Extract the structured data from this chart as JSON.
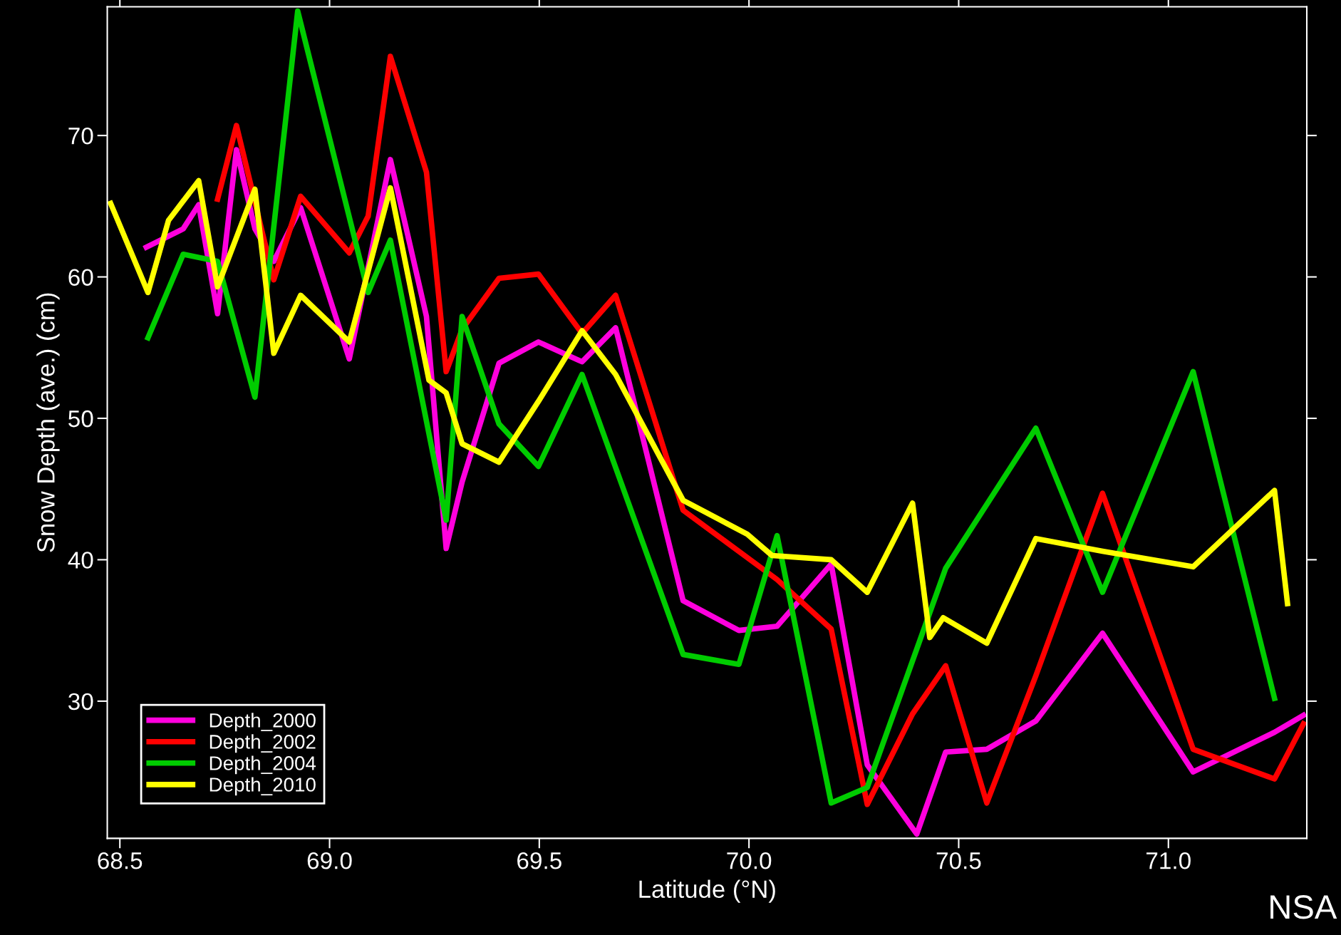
{
  "chart_data": {
    "type": "line",
    "xlabel": "Latitude (°N)",
    "ylabel": "Snow Depth (ave.) (cm)",
    "xlim": [
      68.47,
      71.33
    ],
    "ylim": [
      20.3,
      79.1
    ],
    "xticks": [
      {
        "value": 68.5,
        "label": "68.5"
      },
      {
        "value": 69.0,
        "label": "69.0"
      },
      {
        "value": 69.5,
        "label": "69.5"
      },
      {
        "value": 70.0,
        "label": "70.0"
      },
      {
        "value": 70.5,
        "label": "70.5"
      },
      {
        "value": 71.0,
        "label": "71.0"
      }
    ],
    "yticks": [
      30,
      40,
      50,
      60,
      70
    ],
    "grid": false,
    "legend": "bottom left",
    "marker": "none",
    "line_style": "solid",
    "annotations": [
      "NSA"
    ],
    "series": [
      {
        "name": "Depth_2000",
        "color": "#ff00dd",
        "x": [
          68.563,
          68.651,
          68.688,
          68.733,
          68.778,
          68.822,
          68.867,
          68.931,
          69.047,
          69.145,
          69.231,
          69.278,
          69.316,
          69.404,
          69.498,
          69.602,
          69.682,
          69.843,
          69.976,
          70.067,
          70.196,
          70.282,
          70.4,
          70.469,
          70.567,
          70.684,
          70.843,
          71.059,
          71.253,
          71.322
        ],
        "values": [
          62.1,
          63.4,
          65.1,
          57.4,
          69.0,
          63.4,
          61.1,
          64.9,
          54.2,
          68.3,
          57.2,
          40.8,
          45.5,
          53.9,
          55.4,
          54.0,
          56.4,
          37.1,
          35.0,
          35.3,
          39.7,
          25.5,
          20.6,
          26.4,
          26.6,
          28.6,
          34.8,
          25.0,
          27.8,
          29.0
        ]
      },
      {
        "name": "Depth_2002",
        "color": "#ff0000",
        "x": [
          68.733,
          68.778,
          68.867,
          68.931,
          69.047,
          69.092,
          69.145,
          69.231,
          69.278,
          69.316,
          69.404,
          69.498,
          69.602,
          69.682,
          69.843,
          70.067,
          70.196,
          70.282,
          70.39,
          70.469,
          70.567,
          70.684,
          70.843,
          71.059,
          71.253,
          71.322
        ],
        "values": [
          65.5,
          70.7,
          59.8,
          65.7,
          61.7,
          64.3,
          75.6,
          67.4,
          53.3,
          56.3,
          59.9,
          60.2,
          56.0,
          58.7,
          43.5,
          38.6,
          35.1,
          22.7,
          29.1,
          32.5,
          22.8,
          31.8,
          44.7,
          26.6,
          24.5,
          28.4
        ]
      },
      {
        "name": "Depth_2004",
        "color": "#00cc00",
        "x": [
          68.567,
          68.651,
          68.733,
          68.822,
          68.924,
          69.092,
          69.145,
          69.278,
          69.316,
          69.404,
          69.498,
          69.602,
          69.843,
          69.976,
          70.067,
          70.196,
          70.282,
          70.469,
          70.684,
          70.843,
          71.059,
          71.253
        ],
        "values": [
          55.7,
          61.6,
          61.1,
          51.5,
          78.8,
          58.9,
          62.6,
          42.8,
          57.2,
          49.6,
          46.6,
          53.1,
          33.3,
          32.6,
          41.7,
          22.8,
          23.9,
          39.4,
          49.3,
          37.7,
          53.3,
          30.2
        ]
      },
      {
        "name": "Depth_2010",
        "color": "#ffff00",
        "x": [
          68.478,
          68.567,
          68.616,
          68.688,
          68.733,
          68.822,
          68.867,
          68.931,
          69.047,
          69.145,
          69.237,
          69.278,
          69.316,
          69.404,
          69.498,
          69.602,
          69.682,
          69.843,
          69.996,
          70.055,
          70.196,
          70.282,
          70.39,
          70.431,
          70.463,
          70.567,
          70.684,
          70.843,
          71.059,
          71.253,
          71.284
        ],
        "values": [
          65.2,
          58.9,
          64.0,
          66.8,
          59.3,
          66.2,
          54.6,
          58.7,
          55.4,
          66.3,
          52.7,
          51.8,
          48.2,
          46.9,
          51.2,
          56.2,
          53.1,
          44.2,
          41.8,
          40.3,
          40.0,
          37.7,
          44.0,
          34.5,
          35.9,
          34.1,
          41.5,
          40.6,
          39.5,
          44.9,
          36.9
        ]
      }
    ]
  }
}
